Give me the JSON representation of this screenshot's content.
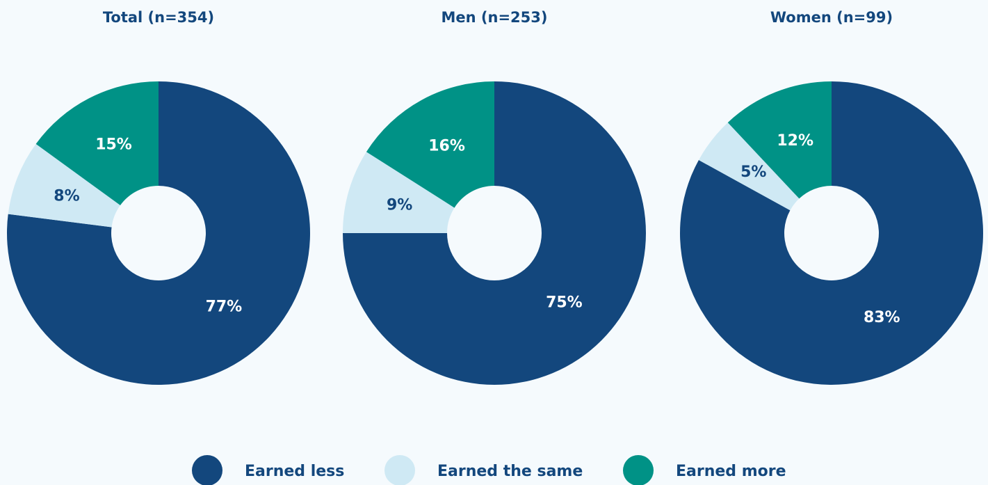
{
  "chart_data": [
    {
      "type": "pie",
      "title": "Total (n=354)",
      "categories": [
        "Earned less",
        "Earned the same",
        "Earned more"
      ],
      "values": [
        77,
        8,
        15
      ],
      "value_labels": [
        "77%",
        "8%",
        "15%"
      ],
      "colors": [
        "#13477d",
        "#cfe9f4",
        "#009286"
      ]
    },
    {
      "type": "pie",
      "title": "Men (n=253)",
      "categories": [
        "Earned less",
        "Earned the same",
        "Earned more"
      ],
      "values": [
        75,
        9,
        16
      ],
      "value_labels": [
        "75%",
        "9%",
        "16%"
      ],
      "colors": [
        "#13477d",
        "#cfe9f4",
        "#009286"
      ]
    },
    {
      "type": "pie",
      "title": "Women (n=99)",
      "categories": [
        "Earned less",
        "Earned the same",
        "Earned more"
      ],
      "values": [
        83,
        5,
        12
      ],
      "value_labels": [
        "83%",
        "5%",
        "12%"
      ],
      "colors": [
        "#13477d",
        "#cfe9f4",
        "#009286"
      ]
    }
  ]
}
